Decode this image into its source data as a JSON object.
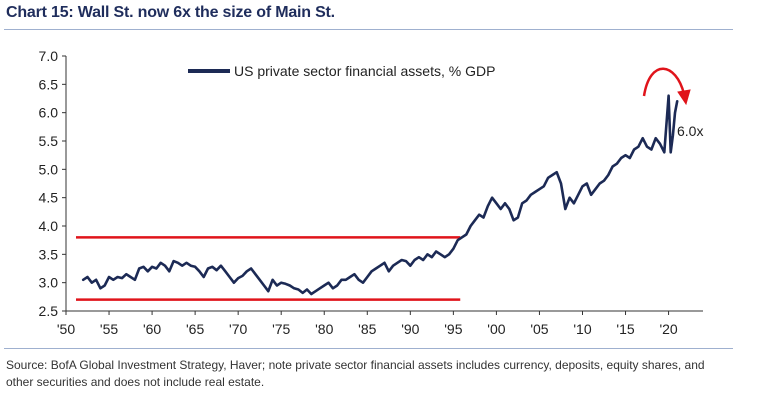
{
  "title": "Chart 15: Wall St. now 6x the size of Main St.",
  "source": "Source: BofA Global Investment Strategy, Haver; note private sector financial assets includes currency, deposits, equity shares, and other securities and does not include real estate.",
  "colors": {
    "series": "#1c2a55",
    "band": "#e0141b",
    "arrow": "#e0141b",
    "title": "#1f2d5c"
  },
  "chart_data": {
    "type": "line",
    "title": "Chart 15: Wall St. now 6x the size of Main St.",
    "xlabel": "",
    "ylabel": "",
    "xlim": [
      1950,
      2024
    ],
    "ylim": [
      2.5,
      7.0
    ],
    "grid": false,
    "legend_placement": "top-center",
    "y_ticks": [
      "2.5",
      "3.0",
      "3.5",
      "4.0",
      "4.5",
      "5.0",
      "5.5",
      "6.0",
      "6.5",
      "7.0"
    ],
    "x_ticks": [
      "'50",
      "'55",
      "'60",
      "'65",
      "'70",
      "'75",
      "'80",
      "'85",
      "'90",
      "'95",
      "'00",
      "'05",
      "'10",
      "'15",
      "'20"
    ],
    "x_tick_values": [
      1950,
      1955,
      1960,
      1965,
      1970,
      1975,
      1980,
      1985,
      1990,
      1995,
      2000,
      2005,
      2010,
      2015,
      2020
    ],
    "series": [
      {
        "name": "US private sector financial assets, % GDP",
        "x": [
          1952.0,
          1952.5,
          1953.0,
          1953.5,
          1954.0,
          1954.5,
          1955.0,
          1955.5,
          1956.0,
          1956.5,
          1957.0,
          1957.5,
          1958.0,
          1958.5,
          1959.0,
          1959.5,
          1960.0,
          1960.5,
          1961.0,
          1961.5,
          1962.0,
          1962.5,
          1963.0,
          1963.5,
          1964.0,
          1964.5,
          1965.0,
          1965.5,
          1966.0,
          1966.5,
          1967.0,
          1967.5,
          1968.0,
          1968.5,
          1969.0,
          1969.5,
          1970.0,
          1970.5,
          1971.0,
          1971.5,
          1972.0,
          1972.5,
          1973.0,
          1973.5,
          1974.0,
          1974.5,
          1975.0,
          1975.5,
          1976.0,
          1976.5,
          1977.0,
          1977.5,
          1978.0,
          1978.5,
          1979.0,
          1979.5,
          1980.0,
          1980.5,
          1981.0,
          1981.5,
          1982.0,
          1982.5,
          1983.0,
          1983.5,
          1984.0,
          1984.5,
          1985.0,
          1985.5,
          1986.0,
          1986.5,
          1987.0,
          1987.5,
          1988.0,
          1988.5,
          1989.0,
          1989.5,
          1990.0,
          1990.5,
          1991.0,
          1991.5,
          1992.0,
          1992.5,
          1993.0,
          1993.5,
          1994.0,
          1994.5,
          1995.0,
          1995.5,
          1996.0,
          1996.5,
          1997.0,
          1997.5,
          1998.0,
          1998.5,
          1999.0,
          1999.5,
          2000.0,
          2000.5,
          2001.0,
          2001.5,
          2002.0,
          2002.5,
          2003.0,
          2003.5,
          2004.0,
          2004.5,
          2005.0,
          2005.5,
          2006.0,
          2006.5,
          2007.0,
          2007.5,
          2008.0,
          2008.5,
          2009.0,
          2009.5,
          2010.0,
          2010.5,
          2011.0,
          2011.5,
          2012.0,
          2012.5,
          2013.0,
          2013.5,
          2014.0,
          2014.5,
          2015.0,
          2015.5,
          2016.0,
          2016.5,
          2017.0,
          2017.5,
          2018.0,
          2018.5,
          2019.0,
          2019.5,
          2020.0,
          2020.25,
          2020.5,
          2020.75,
          2021.0
        ],
        "values": [
          3.05,
          3.1,
          3.0,
          3.05,
          2.9,
          2.95,
          3.1,
          3.05,
          3.1,
          3.08,
          3.15,
          3.1,
          3.05,
          3.25,
          3.28,
          3.2,
          3.28,
          3.25,
          3.35,
          3.3,
          3.2,
          3.38,
          3.35,
          3.3,
          3.35,
          3.3,
          3.28,
          3.2,
          3.1,
          3.25,
          3.28,
          3.22,
          3.3,
          3.2,
          3.1,
          3.0,
          3.08,
          3.12,
          3.2,
          3.25,
          3.15,
          3.05,
          2.95,
          2.85,
          3.05,
          2.95,
          3.0,
          2.98,
          2.95,
          2.9,
          2.88,
          2.82,
          2.88,
          2.8,
          2.85,
          2.9,
          2.95,
          3.0,
          2.9,
          2.95,
          3.05,
          3.05,
          3.1,
          3.15,
          3.05,
          3.0,
          3.1,
          3.2,
          3.25,
          3.3,
          3.35,
          3.2,
          3.3,
          3.35,
          3.4,
          3.38,
          3.3,
          3.4,
          3.45,
          3.4,
          3.5,
          3.45,
          3.55,
          3.5,
          3.45,
          3.5,
          3.6,
          3.75,
          3.8,
          3.85,
          4.0,
          4.1,
          4.2,
          4.15,
          4.35,
          4.5,
          4.4,
          4.3,
          4.4,
          4.3,
          4.1,
          4.15,
          4.4,
          4.45,
          4.55,
          4.6,
          4.65,
          4.7,
          4.85,
          4.9,
          4.95,
          4.75,
          4.3,
          4.5,
          4.4,
          4.55,
          4.7,
          4.75,
          4.55,
          4.65,
          4.75,
          4.8,
          4.9,
          5.05,
          5.1,
          5.2,
          5.25,
          5.2,
          5.35,
          5.4,
          5.55,
          5.4,
          5.35,
          5.55,
          5.45,
          5.3,
          6.3,
          5.3,
          5.6,
          6.0,
          6.2
        ]
      }
    ],
    "reference_bands": [
      {
        "y": 3.8,
        "x_start": 1950,
        "x_end": 1995.8
      },
      {
        "y": 2.7,
        "x_start": 1950,
        "x_end": 1995.8
      }
    ],
    "annotations": [
      {
        "text": "6.0x",
        "x": 2022,
        "y": 5.45
      }
    ]
  }
}
